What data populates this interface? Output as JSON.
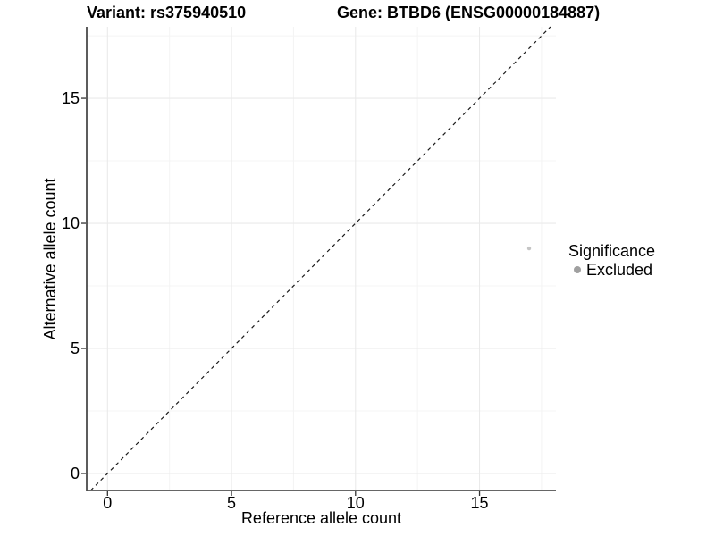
{
  "chart_data": {
    "type": "scatter",
    "titles": {
      "left": "Variant: rs375940510",
      "right": "Gene: BTBD6 (ENSG00000184887)"
    },
    "xlabel": "Reference allele count",
    "ylabel": "Alternative allele count",
    "x_ticks": [
      0,
      5,
      10,
      15
    ],
    "y_ticks": [
      0,
      5,
      10,
      15
    ],
    "x_minor_ticks": [
      2.5,
      7.5,
      12.5,
      17.5
    ],
    "y_minor_ticks": [
      2.5,
      7.5,
      12.5,
      17.5
    ],
    "xlim": [
      -0.84,
      18.08
    ],
    "ylim": [
      -0.68,
      17.86
    ],
    "grid": "major+minor",
    "points": [
      {
        "x": 17,
        "y": 9,
        "series": "Excluded",
        "color": "#c5c5c5",
        "radius": 2.2
      }
    ],
    "reference_line": {
      "type": "identity",
      "equation": "y = x",
      "style": "dashed",
      "color": "#1a1a1a"
    },
    "legend": {
      "title": "Significance",
      "position": "right",
      "items": [
        {
          "label": "Excluded",
          "color": "#a0a0a0",
          "marker": "circle"
        }
      ]
    },
    "colors": {
      "grid_major": "#eaeaea",
      "grid_minor": "#f4f4f4",
      "axis": "#333333",
      "text": "#000000",
      "background": "#ffffff"
    }
  }
}
